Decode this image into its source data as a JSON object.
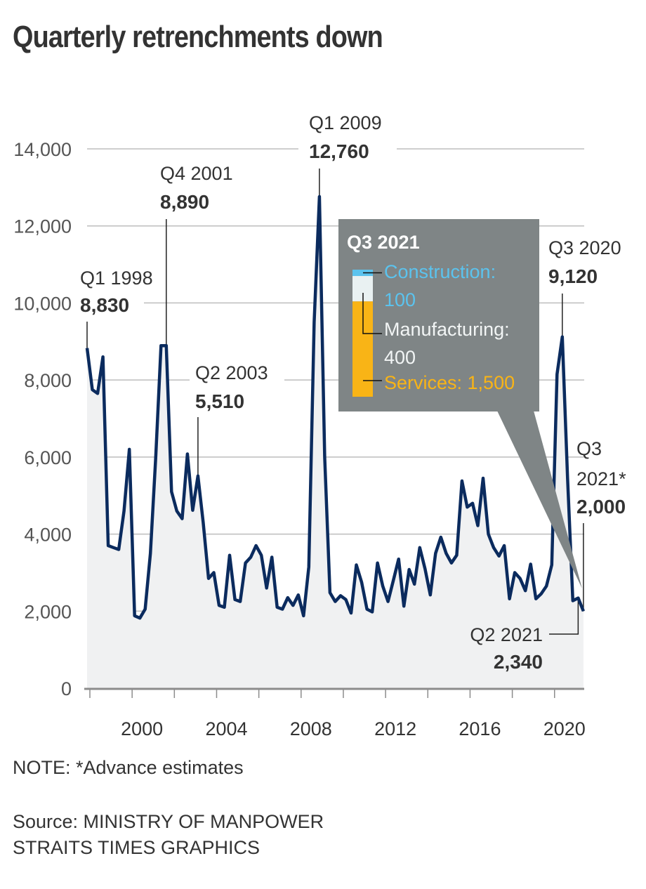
{
  "title": "Quarterly retrenchments down",
  "note": "NOTE: *Advance estimates",
  "source_line1": "Source: MINISTRY OF MANPOWER",
  "source_line2": "STRAITS TIMES GRAPHICS",
  "colors": {
    "line": "#0b2b5e",
    "area": "#f0f1f2",
    "grid": "#bdbdbd",
    "axis": "#8c8c8c",
    "box": "#7f8586",
    "construction": "#5bc3ee",
    "manufacturing": "#e9f1f2",
    "services": "#f9b416"
  },
  "chart_data": {
    "type": "area",
    "title": "Quarterly retrenchments down",
    "xlabel": "",
    "ylabel": "",
    "ylim": [
      0,
      14000
    ],
    "yticks": [
      0,
      2000,
      4000,
      6000,
      8000,
      10000,
      12000,
      14000
    ],
    "ytick_labels": [
      "0",
      "2,000",
      "4,000",
      "6,000",
      "8,000",
      "10,000",
      "12,000",
      "14,000"
    ],
    "xticks_years": [
      1998,
      2000,
      2002,
      2004,
      2006,
      2008,
      2010,
      2012,
      2014,
      2016,
      2018,
      2020
    ],
    "xtick_labels": [
      "2000",
      "2004",
      "2008",
      "2012",
      "2016",
      "2020"
    ],
    "xtick_label_years": [
      2000,
      2004,
      2008,
      2012,
      2016,
      2020
    ],
    "grid": true,
    "start": "Q1 1998",
    "series": [
      {
        "name": "Retrenchments",
        "values": [
          8830,
          7750,
          7650,
          8600,
          3700,
          3650,
          3600,
          4600,
          6200,
          1880,
          1820,
          2050,
          3500,
          6000,
          8890,
          8890,
          5100,
          4600,
          4400,
          6080,
          4620,
          5510,
          4300,
          2850,
          3000,
          2150,
          2100,
          3450,
          2300,
          2250,
          3250,
          3400,
          3700,
          3450,
          2600,
          3400,
          2100,
          2050,
          2350,
          2150,
          2420,
          1880,
          3150,
          9500,
          12760,
          6000,
          2480,
          2250,
          2400,
          2300,
          1950,
          3200,
          2750,
          2050,
          1980,
          3250,
          2650,
          2250,
          2800,
          3350,
          2130,
          3080,
          2700,
          3650,
          3100,
          2420,
          3500,
          3920,
          3500,
          3250,
          3450,
          5380,
          4700,
          4800,
          4220,
          5450,
          4000,
          3650,
          3430,
          3700,
          2320,
          3000,
          2850,
          2530,
          3220,
          2320,
          2450,
          2650,
          3200,
          8150,
          9120,
          5450,
          2270,
          2340,
          2000
        ]
      }
    ],
    "annotations": [
      {
        "period": "Q1 1998",
        "value": 8830,
        "value_label": "8,830"
      },
      {
        "period": "Q4 2001",
        "value": 8890,
        "value_label": "8,890"
      },
      {
        "period": "Q2 2003",
        "value": 5510,
        "value_label": "5,510"
      },
      {
        "period": "Q1 2009",
        "value": 12760,
        "value_label": "12,760"
      },
      {
        "period": "Q3 2020",
        "value": 9120,
        "value_label": "9,120"
      },
      {
        "period_line1": "Q3",
        "period_line2": "2021*",
        "period": "Q3 2021*",
        "value": 2000,
        "value_label": "2,000"
      },
      {
        "period": "Q2 2021",
        "value": 2340,
        "value_label": "2,340"
      }
    ],
    "breakdown": {
      "title": "Q3 2021",
      "segments": [
        {
          "name": "Construction",
          "label": "Construction:",
          "value": 100,
          "value_label": "100"
        },
        {
          "name": "Manufacturing",
          "label": "Manufacturing:",
          "value": 400,
          "value_label": "400"
        },
        {
          "name": "Services",
          "label": "Services: 1,500",
          "value": 1500,
          "value_label": "1,500"
        }
      ]
    }
  }
}
